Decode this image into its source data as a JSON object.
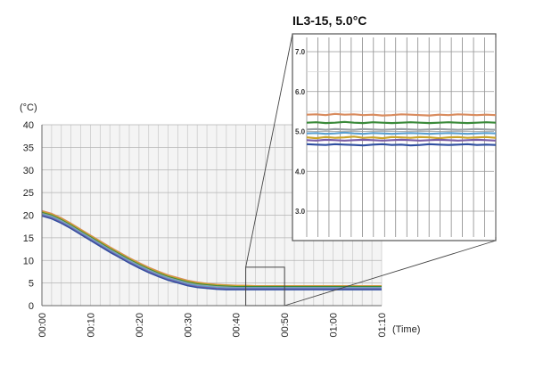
{
  "chart_data": [
    {
      "type": "line",
      "title": "",
      "ylabel": "(°C)",
      "xlabel": "(Time)",
      "x_ticks": [
        "00:00",
        "00:10",
        "00:20",
        "00:30",
        "00:40",
        "00:50",
        "01:00",
        "01:10"
      ],
      "y_ticks": [
        "0",
        "5",
        "10",
        "15",
        "20",
        "25",
        "30",
        "35",
        "40"
      ],
      "xlim": [
        0,
        70
      ],
      "ylim": [
        0,
        40
      ],
      "grid": true,
      "x": [
        0,
        2,
        4,
        6,
        8,
        10,
        12,
        14,
        16,
        18,
        20,
        22,
        24,
        26,
        28,
        30,
        32,
        34,
        36,
        38,
        40,
        42,
        44,
        46,
        48,
        50,
        52,
        54,
        56,
        58,
        60,
        62,
        64,
        66,
        68,
        70
      ],
      "series": [
        {
          "color": "#d98c5f",
          "values": [
            21.0,
            20.4,
            19.4,
            18.2,
            16.9,
            15.6,
            14.3,
            13.0,
            11.8,
            10.6,
            9.5,
            8.5,
            7.6,
            6.8,
            6.2,
            5.6,
            5.2,
            4.9,
            4.7,
            4.6,
            4.5,
            4.5,
            4.4,
            4.4,
            4.4,
            4.4,
            4.4,
            4.4,
            4.4,
            4.4,
            4.4,
            4.4,
            4.4,
            4.4,
            4.4,
            4.4
          ]
        },
        {
          "color": "#c9a227",
          "values": [
            20.8,
            20.2,
            19.2,
            18.0,
            16.7,
            15.4,
            14.1,
            12.8,
            11.6,
            10.4,
            9.3,
            8.3,
            7.4,
            6.6,
            6.0,
            5.4,
            5.0,
            4.8,
            4.6,
            4.5,
            4.4,
            4.4,
            4.3,
            4.3,
            4.3,
            4.3,
            4.3,
            4.3,
            4.3,
            4.3,
            4.3,
            4.3,
            4.3,
            4.3,
            4.3,
            4.3
          ]
        },
        {
          "color": "#3a8a3a",
          "values": [
            20.6,
            20.0,
            19.0,
            17.8,
            16.5,
            15.2,
            13.9,
            12.6,
            11.4,
            10.2,
            9.1,
            8.1,
            7.2,
            6.4,
            5.8,
            5.2,
            4.8,
            4.6,
            4.4,
            4.3,
            4.2,
            4.2,
            4.2,
            4.2,
            4.2,
            4.2,
            4.2,
            4.2,
            4.2,
            4.2,
            4.2,
            4.2,
            4.2,
            4.2,
            4.2,
            4.2
          ]
        },
        {
          "color": "#9aa0a6",
          "values": [
            20.4,
            19.8,
            18.8,
            17.6,
            16.3,
            15.0,
            13.7,
            12.4,
            11.2,
            10.0,
            8.9,
            7.9,
            7.0,
            6.2,
            5.6,
            5.0,
            4.6,
            4.4,
            4.2,
            4.1,
            4.0,
            4.0,
            4.0,
            4.0,
            4.0,
            4.0,
            4.0,
            4.0,
            4.0,
            4.0,
            4.0,
            4.0,
            4.0,
            4.0,
            4.0,
            4.0
          ]
        },
        {
          "color": "#5aa0d0",
          "values": [
            20.2,
            19.6,
            18.6,
            17.4,
            16.1,
            14.8,
            13.5,
            12.2,
            11.0,
            9.8,
            8.7,
            7.7,
            6.8,
            6.0,
            5.4,
            4.8,
            4.4,
            4.2,
            4.0,
            3.9,
            3.9,
            3.9,
            3.9,
            3.9,
            3.9,
            3.9,
            3.9,
            3.9,
            3.9,
            3.9,
            3.9,
            3.9,
            3.9,
            3.9,
            3.9,
            3.9
          ]
        },
        {
          "color": "#7b5ea7",
          "values": [
            20.0,
            19.4,
            18.4,
            17.2,
            15.9,
            14.6,
            13.3,
            12.0,
            10.8,
            9.6,
            8.5,
            7.5,
            6.6,
            5.8,
            5.2,
            4.6,
            4.2,
            4.0,
            3.8,
            3.7,
            3.7,
            3.7,
            3.7,
            3.7,
            3.7,
            3.7,
            3.7,
            3.7,
            3.7,
            3.7,
            3.7,
            3.7,
            3.7,
            3.7,
            3.7,
            3.7
          ]
        },
        {
          "color": "#2f4fa0",
          "values": [
            19.8,
            19.2,
            18.2,
            17.0,
            15.7,
            14.4,
            13.1,
            11.8,
            10.6,
            9.4,
            8.3,
            7.3,
            6.4,
            5.6,
            5.0,
            4.4,
            4.0,
            3.8,
            3.6,
            3.5,
            3.5,
            3.5,
            3.5,
            3.5,
            3.5,
            3.5,
            3.5,
            3.5,
            3.5,
            3.5,
            3.5,
            3.5,
            3.5,
            3.5,
            3.5,
            3.5
          ]
        }
      ]
    },
    {
      "type": "line",
      "title": "IL3-15, 5.0°C",
      "ylim": [
        3.0,
        7.0
      ],
      "y_ticks": [
        "3.0",
        "4.0",
        "5.0",
        "6.0",
        "7.0"
      ],
      "grid": true,
      "x": [
        0,
        1,
        2,
        3,
        4,
        5,
        6,
        7,
        8,
        9,
        10,
        11,
        12,
        13,
        14,
        15,
        16,
        17,
        18,
        19,
        20
      ],
      "series": [
        {
          "color": "#d98c5f",
          "values": [
            5.42,
            5.43,
            5.41,
            5.44,
            5.42,
            5.43,
            5.41,
            5.42,
            5.4,
            5.41,
            5.43,
            5.42,
            5.41,
            5.4,
            5.42,
            5.41,
            5.43,
            5.42,
            5.41,
            5.42,
            5.41
          ]
        },
        {
          "color": "#3a8a3a",
          "values": [
            5.22,
            5.23,
            5.21,
            5.22,
            5.24,
            5.22,
            5.21,
            5.23,
            5.22,
            5.21,
            5.22,
            5.23,
            5.22,
            5.21,
            5.22,
            5.23,
            5.22,
            5.21,
            5.22,
            5.23,
            5.22
          ]
        },
        {
          "color": "#9aa0a6",
          "values": [
            5.05,
            5.06,
            5.04,
            5.06,
            5.05,
            5.04,
            5.06,
            5.05,
            5.04,
            5.05,
            5.06,
            5.05,
            5.04,
            5.05,
            5.06,
            5.05,
            5.04,
            5.05,
            5.06,
            5.05,
            5.04
          ]
        },
        {
          "color": "#5aa0d0",
          "values": [
            4.95,
            4.96,
            4.94,
            4.95,
            4.97,
            4.95,
            4.94,
            4.96,
            4.95,
            4.94,
            4.95,
            4.96,
            4.95,
            4.94,
            4.95,
            4.96,
            4.95,
            4.94,
            4.95,
            4.96,
            4.95
          ]
        },
        {
          "color": "#c9a227",
          "values": [
            4.85,
            4.83,
            4.86,
            4.84,
            4.85,
            4.87,
            4.84,
            4.85,
            4.83,
            4.86,
            4.85,
            4.84,
            4.86,
            4.85,
            4.83,
            4.85,
            4.86,
            4.84,
            4.85,
            4.86,
            4.84
          ]
        },
        {
          "color": "#7b5ea7",
          "values": [
            4.78,
            4.77,
            4.79,
            4.78,
            4.77,
            4.78,
            4.79,
            4.78,
            4.77,
            4.78,
            4.79,
            4.78,
            4.77,
            4.78,
            4.79,
            4.78,
            4.77,
            4.78,
            4.79,
            4.78,
            4.77
          ]
        },
        {
          "color": "#2f4fa0",
          "values": [
            4.68,
            4.67,
            4.66,
            4.68,
            4.67,
            4.66,
            4.65,
            4.67,
            4.68,
            4.66,
            4.67,
            4.65,
            4.66,
            4.68,
            4.67,
            4.66,
            4.67,
            4.68,
            4.66,
            4.67,
            4.66
          ]
        }
      ]
    }
  ],
  "zoom_region": {
    "x_start": 42,
    "x_end": 50,
    "y_start": 3,
    "y_end": 8.5
  }
}
